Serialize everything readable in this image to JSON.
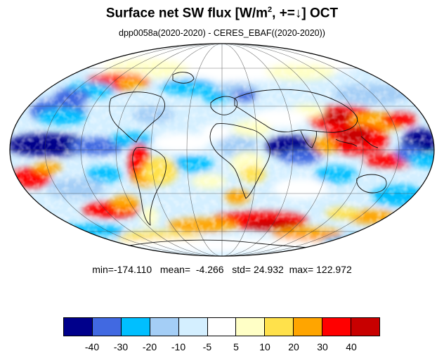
{
  "title": {
    "prefix": "Surface net SW flux [W/m",
    "superscript": "2",
    "suffix": ", +=↓]  OCT"
  },
  "subtitle": "dpp0058a(2020-2020) - CERES_EBAF((2020-2020))",
  "stats": {
    "min_label": "min=",
    "min": "-174.110",
    "mean_label": "mean=",
    "mean": "-4.266",
    "std_label": "std=",
    "std": "24.932",
    "max_label": "max=",
    "max": "122.972"
  },
  "colorbar": {
    "colors": [
      "#00008b",
      "#4169e1",
      "#00bfff",
      "#a4cef6",
      "#d4efff",
      "#ffffff",
      "#ffffc6",
      "#ffe14b",
      "#ffa500",
      "#ff0000",
      "#c80000"
    ],
    "labels": [
      "-40",
      "-30",
      "-20",
      "-10",
      "-5",
      "5",
      "10",
      "20",
      "30",
      "40"
    ]
  },
  "map": {
    "projection": "Mollweide",
    "graticule": "30-degree grid",
    "coastlines": true
  }
}
